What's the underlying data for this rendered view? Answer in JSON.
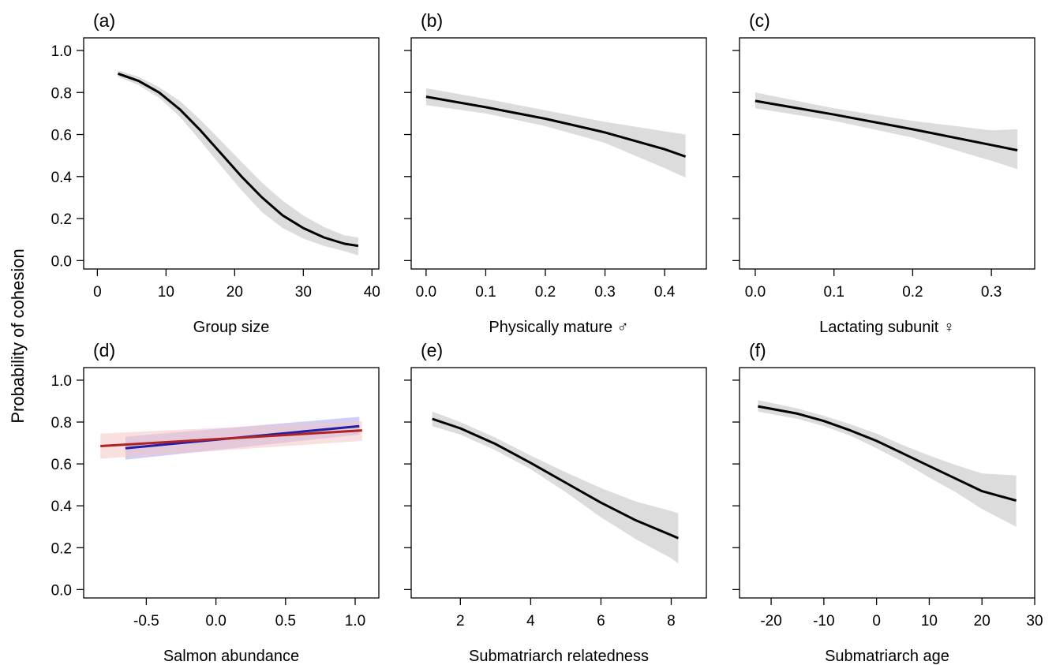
{
  "figure": {
    "ylabel": "Probability of cohesion"
  },
  "chart_data": [
    {
      "panel": "(a)",
      "type": "line",
      "xlabel": "Group size",
      "xlim": [
        -2,
        41
      ],
      "ylim": [
        -0.04,
        1.06
      ],
      "xticks": [
        0,
        10,
        20,
        30,
        40
      ],
      "xtick_labels": [
        "0",
        "10",
        "20",
        "30",
        "40"
      ],
      "yticks": [
        0.0,
        0.2,
        0.4,
        0.6,
        0.8,
        1.0
      ],
      "ytick_labels": [
        "0.0",
        "0.2",
        "0.4",
        "0.6",
        "0.8",
        "1.0"
      ],
      "series": [
        {
          "color": "#000000",
          "band_color": "#dcdcdc",
          "x": [
            3,
            6,
            9,
            12,
            15,
            18,
            21,
            24,
            27,
            30,
            33,
            36,
            38
          ],
          "y": [
            0.89,
            0.855,
            0.8,
            0.72,
            0.62,
            0.51,
            0.4,
            0.3,
            0.215,
            0.155,
            0.11,
            0.08,
            0.07
          ],
          "lower": [
            0.875,
            0.835,
            0.775,
            0.685,
            0.57,
            0.45,
            0.335,
            0.23,
            0.155,
            0.105,
            0.07,
            0.045,
            0.025
          ],
          "upper": [
            0.905,
            0.875,
            0.825,
            0.76,
            0.67,
            0.57,
            0.47,
            0.37,
            0.285,
            0.215,
            0.16,
            0.12,
            0.11
          ]
        }
      ]
    },
    {
      "panel": "(b)",
      "type": "line",
      "xlabel": "Physically mature ♂",
      "xlim": [
        -0.025,
        0.47
      ],
      "ylim": [
        -0.04,
        1.06
      ],
      "xticks": [
        0.0,
        0.1,
        0.2,
        0.3,
        0.4
      ],
      "xtick_labels": [
        "0.0",
        "0.1",
        "0.2",
        "0.3",
        "0.4"
      ],
      "yticks": [
        0.0,
        0.2,
        0.4,
        0.6,
        0.8,
        1.0
      ],
      "ytick_labels": [
        "",
        "",
        "",
        "",
        "",
        ""
      ],
      "series": [
        {
          "color": "#000000",
          "band_color": "#dcdcdc",
          "x": [
            0.0,
            0.1,
            0.2,
            0.3,
            0.4,
            0.435
          ],
          "y": [
            0.78,
            0.73,
            0.675,
            0.61,
            0.53,
            0.495
          ],
          "lower": [
            0.74,
            0.7,
            0.64,
            0.56,
            0.44,
            0.395
          ],
          "upper": [
            0.82,
            0.77,
            0.715,
            0.66,
            0.615,
            0.6
          ]
        }
      ]
    },
    {
      "panel": "(c)",
      "type": "line",
      "xlabel": "Lactating subunit ♀",
      "xlim": [
        -0.02,
        0.355
      ],
      "ylim": [
        -0.04,
        1.06
      ],
      "xticks": [
        0.0,
        0.1,
        0.2,
        0.3
      ],
      "xtick_labels": [
        "0.0",
        "0.1",
        "0.2",
        "0.3"
      ],
      "yticks": [
        0.0,
        0.2,
        0.4,
        0.6,
        0.8,
        1.0
      ],
      "ytick_labels": [
        "",
        "",
        "",
        "",
        "",
        ""
      ],
      "series": [
        {
          "color": "#000000",
          "band_color": "#dcdcdc",
          "x": [
            0.0,
            0.1,
            0.2,
            0.3,
            0.333
          ],
          "y": [
            0.76,
            0.695,
            0.625,
            0.55,
            0.525
          ],
          "lower": [
            0.725,
            0.665,
            0.585,
            0.475,
            0.435
          ],
          "upper": [
            0.8,
            0.725,
            0.665,
            0.62,
            0.625
          ]
        }
      ]
    },
    {
      "panel": "(d)",
      "type": "line",
      "xlabel": "Salmon abundance",
      "xlim": [
        -0.95,
        1.17
      ],
      "ylim": [
        -0.04,
        1.06
      ],
      "xticks": [
        -0.5,
        0.0,
        0.5,
        1.0
      ],
      "xtick_labels": [
        "-0.5",
        "0.0",
        "0.5",
        "1.0"
      ],
      "yticks": [
        0.0,
        0.2,
        0.4,
        0.6,
        0.8,
        1.0
      ],
      "ytick_labels": [
        "0.0",
        "0.2",
        "0.4",
        "0.6",
        "0.8",
        "1.0"
      ],
      "series": [
        {
          "color": "#1f1fa8",
          "band_color": "#a5a5f0",
          "x": [
            -0.65,
            1.03
          ],
          "y": [
            0.675,
            0.78
          ],
          "lower": [
            0.62,
            0.74
          ],
          "upper": [
            0.73,
            0.825
          ]
        },
        {
          "color": "#b22222",
          "band_color": "#f6c4c4",
          "x": [
            -0.83,
            1.05
          ],
          "y": [
            0.685,
            0.76
          ],
          "lower": [
            0.625,
            0.71
          ],
          "upper": [
            0.745,
            0.805
          ]
        }
      ]
    },
    {
      "panel": "(e)",
      "type": "line",
      "xlabel": "Submatriarch relatedness",
      "xlim": [
        0.6,
        9.0
      ],
      "ylim": [
        -0.04,
        1.06
      ],
      "xticks": [
        2,
        4,
        6,
        8
      ],
      "xtick_labels": [
        "2",
        "4",
        "6",
        "8"
      ],
      "yticks": [
        0.0,
        0.2,
        0.4,
        0.6,
        0.8,
        1.0
      ],
      "ytick_labels": [
        "",
        "",
        "",
        "",
        "",
        ""
      ],
      "series": [
        {
          "color": "#000000",
          "band_color": "#dcdcdc",
          "x": [
            1.2,
            2,
            3,
            4,
            5,
            6,
            7,
            8,
            8.2
          ],
          "y": [
            0.815,
            0.77,
            0.695,
            0.605,
            0.51,
            0.415,
            0.33,
            0.26,
            0.245
          ],
          "lower": [
            0.78,
            0.74,
            0.665,
            0.575,
            0.465,
            0.345,
            0.24,
            0.15,
            0.125
          ],
          "upper": [
            0.85,
            0.8,
            0.725,
            0.64,
            0.56,
            0.485,
            0.42,
            0.375,
            0.365
          ]
        }
      ]
    },
    {
      "panel": "(f)",
      "type": "line",
      "xlabel": "Submatriarch age",
      "xlim": [
        -26,
        30
      ],
      "ylim": [
        -0.04,
        1.06
      ],
      "xticks": [
        -20,
        -10,
        0,
        10,
        20,
        30
      ],
      "xtick_labels": [
        "-20",
        "-10",
        "0",
        "10",
        "20",
        "30"
      ],
      "yticks": [
        0.0,
        0.2,
        0.4,
        0.6,
        0.8,
        1.0
      ],
      "ytick_labels": [
        "",
        "",
        "",
        "",
        "",
        ""
      ],
      "series": [
        {
          "color": "#000000",
          "band_color": "#dcdcdc",
          "x": [
            -22.5,
            -15,
            -10,
            -5,
            0,
            5,
            10,
            15,
            20,
            26.5
          ],
          "y": [
            0.875,
            0.84,
            0.805,
            0.76,
            0.71,
            0.65,
            0.59,
            0.53,
            0.47,
            0.425
          ],
          "lower": [
            0.85,
            0.815,
            0.78,
            0.735,
            0.675,
            0.61,
            0.535,
            0.465,
            0.385,
            0.3
          ],
          "upper": [
            0.905,
            0.865,
            0.83,
            0.79,
            0.745,
            0.69,
            0.64,
            0.595,
            0.555,
            0.545
          ]
        }
      ]
    }
  ]
}
